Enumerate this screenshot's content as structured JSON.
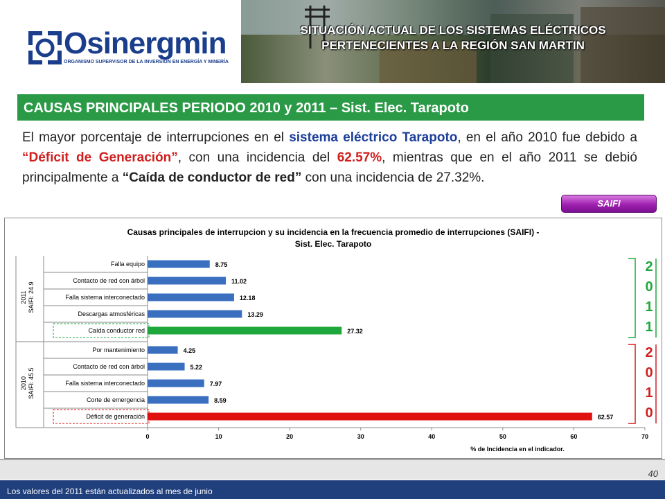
{
  "header": {
    "logo_name": "Osinergmin",
    "logo_subtitle": "ORGANISMO SUPERVISOR DE LA INVERSIÓN EN ENERGÍA Y MINERÍA",
    "banner_title_line1": "SITUACIÓN ACTUAL DE LOS SISTEMAS ELÉCTRICOS",
    "banner_title_line2": "PERTENECIENTES A LA REGIÓN SAN MARTIN"
  },
  "section": {
    "title": "CAUSAS PRINCIPALES PERIODO 2010 y 2011 – Sist. Elec. Tarapoto"
  },
  "paragraph": {
    "p1": "El mayor porcentaje de interrupciones en el ",
    "p2": "sistema eléctrico Tarapoto",
    "p3": ", en el año 2010 fue debido a ",
    "p4": "“Déficit de Generación”",
    "p5": ", con una incidencia del ",
    "p6": "62.57%",
    "p7": ", mientras que en el año 2011 se debió principalmente a ",
    "p8": "“Caída de conductor de red”",
    "p9": " con una incidencia de 27.32%."
  },
  "saifi_button": "SAIFI",
  "footer": {
    "note": "Los valores del 2011 están actualizados al mes de junio",
    "page": "40"
  },
  "colors": {
    "green": "#2a9a46",
    "blue_bar": "#3a6fc0",
    "green_bar": "#1ea83c",
    "red_bar": "#e01010",
    "navy": "#1f3f7d"
  },
  "chart_data": {
    "type": "bar",
    "orientation": "horizontal",
    "title": "Causas principales de interrupcion y su incidencia en  la frecuencia promedio de interrupciones (SAIFI) - Sist. Elec. Tarapoto",
    "title_line1": "Causas principales de interrupcion y su incidencia en  la frecuencia promedio de interrupciones (SAIFI) -",
    "title_line2": "Sist. Elec. Tarapoto",
    "xlabel": "% de Incidencia en el indicador.",
    "xlim": [
      0,
      70
    ],
    "xticks": [
      0,
      10,
      20,
      30,
      40,
      50,
      60,
      70
    ],
    "groups": [
      {
        "year": "2011",
        "saifi": "SAIFI: 24.9",
        "side_digits": [
          "2",
          "0",
          "1",
          "1"
        ],
        "side_color": "#1ea83c",
        "items": [
          {
            "category": "Falla equipo",
            "value": 8.75,
            "label": "8.75",
            "highlight": false
          },
          {
            "category": "Contacto de red con árbol",
            "value": 11.02,
            "label": "11.02",
            "highlight": false
          },
          {
            "category": "Falla sistema interconectado",
            "value": 12.18,
            "label": "12.18",
            "highlight": false
          },
          {
            "category": "Descargas atmosféricas",
            "value": 13.29,
            "label": "13.29",
            "highlight": false
          },
          {
            "category": "Caída conductor red",
            "value": 27.32,
            "label": "27.32",
            "highlight": true,
            "color": "#1ea83c"
          }
        ]
      },
      {
        "year": "2010",
        "saifi": "SAIFI: 45.5",
        "side_digits": [
          "2",
          "0",
          "1",
          "0"
        ],
        "side_color": "#d01f1f",
        "items": [
          {
            "category": "Por mantenimiento",
            "value": 4.25,
            "label": "4.25",
            "highlight": false
          },
          {
            "category": "Contacto de red con árbol",
            "value": 5.22,
            "label": "5.22",
            "highlight": false
          },
          {
            "category": "Falla sistema interconectado",
            "value": 7.97,
            "label": "7.97",
            "highlight": false
          },
          {
            "category": "Corte de emergencia",
            "value": 8.59,
            "label": "8.59",
            "highlight": false
          },
          {
            "category": "Déficit de generación",
            "value": 62.57,
            "label": "62.57",
            "highlight": true,
            "color": "#e01010"
          }
        ]
      }
    ]
  }
}
